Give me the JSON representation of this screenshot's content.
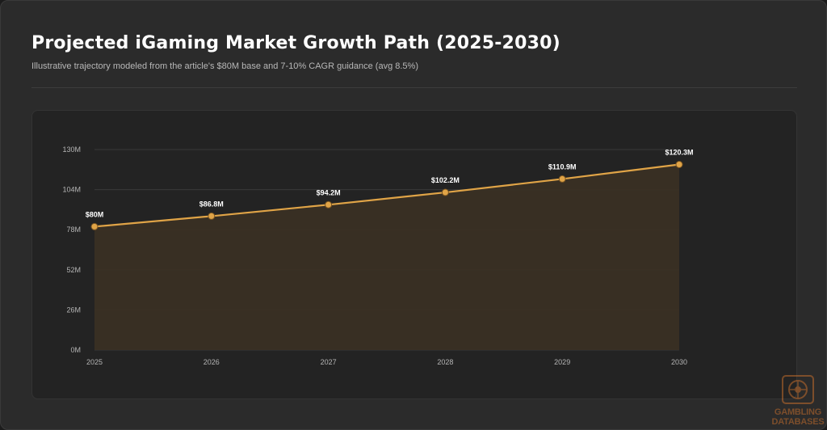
{
  "title": "Projected iGaming Market Growth Path (2025-2030)",
  "subtitle": "Illustrative trajectory modeled from the article's $80M base and 7-10% CAGR guidance (avg 8.5%)",
  "colors": {
    "line": "#e0a447",
    "fill": "#3a3024",
    "point": "#e0a447",
    "grid": "#3a3a3a",
    "axis_text": "#b5b5b5",
    "label_text": "#ffffff"
  },
  "chart_data": {
    "type": "area",
    "x": [
      "2025",
      "2026",
      "2027",
      "2028",
      "2029",
      "2030"
    ],
    "series": [
      {
        "values": [
          80,
          86.8,
          94.2,
          102.2,
          110.9,
          120.3
        ],
        "data_labels": [
          "$80M",
          "$86.8M",
          "$94.2M",
          "$102.2M",
          "$110.9M",
          "$120.3M"
        ]
      }
    ],
    "y_ticks": [
      0,
      26,
      52,
      78,
      104,
      130
    ],
    "y_tick_labels": [
      "0M",
      "26M",
      "52M",
      "78M",
      "104M",
      "130M"
    ],
    "ylim": [
      0,
      130
    ],
    "grid": true
  },
  "watermark": {
    "lines": [
      "GAMBLING",
      "DATABASES"
    ],
    "icon": "roulette-wheel-icon"
  }
}
